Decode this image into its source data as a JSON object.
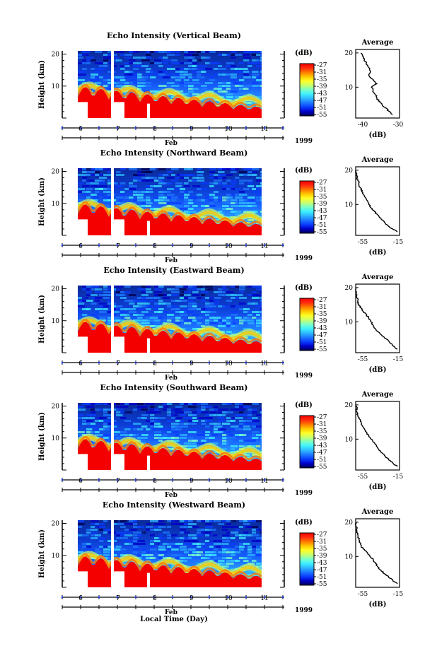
{
  "colors": {
    "colorscale": [
      "#00004e",
      "#0000c8",
      "#0a3cff",
      "#1e78ff",
      "#2db9ff",
      "#3ff0ff",
      "#7affc8",
      "#c8ff6e",
      "#ffff28",
      "#ffc800",
      "#ff7800",
      "#ff2a10",
      "#f50000"
    ]
  },
  "common": {
    "x_tick_labels": [
      "6",
      "7",
      "8",
      "9",
      "10",
      "11"
    ],
    "x_month_label": "Feb",
    "x_year_label": "1999",
    "xlabel": "Local Time (Day)",
    "ylabel": "Height (km)",
    "y_tick_labels": [
      "20",
      "10"
    ],
    "colorbar_unit": "(dB)",
    "colorbar_ticks": [
      "-27",
      "-31",
      "-35",
      "-39",
      "-43",
      "-47",
      "-51",
      "-55"
    ],
    "avg_title": "Average",
    "avg_xlabel": "(dB)"
  },
  "chart_data": [
    {
      "type": "heatmap",
      "title": "Echo Intensity (Vertical Beam)",
      "xlabel": "Local Time (Day)",
      "ylabel": "Height (km)",
      "x_ticks": [
        6,
        7,
        8,
        9,
        10,
        11
      ],
      "y_ticks": [
        10,
        20
      ],
      "colorbar": {
        "unit": "(dB)",
        "ticks": [
          -27,
          -31,
          -35,
          -39,
          -43,
          -47,
          -51,
          -55
        ]
      },
      "average_profile": {
        "title": "Average",
        "xlabel": "(dB)",
        "xlim": [
          -48,
          -23
        ],
        "x_tick_labels": [
          "-40",
          "-30"
        ],
        "ylim": [
          1,
          21
        ],
        "height_km": [
          20,
          19,
          18,
          17,
          16,
          15,
          14,
          13,
          12,
          11,
          10,
          9,
          8,
          7,
          6,
          5,
          4,
          3,
          2
        ],
        "db": [
          -45,
          -44,
          -43,
          -42,
          -41,
          -40,
          -40,
          -40,
          -38,
          -36,
          -39,
          -38,
          -37,
          -36,
          -35,
          -33,
          -31,
          -29,
          -27
        ]
      }
    },
    {
      "type": "heatmap",
      "title": "Echo Intensity (Northward Beam)",
      "xlabel": "Local Time (Day)",
      "ylabel": "Height (km)",
      "x_ticks": [
        6,
        7,
        8,
        9,
        10,
        11
      ],
      "y_ticks": [
        10,
        20
      ],
      "colorbar": {
        "unit": "(dB)",
        "ticks": [
          -27,
          -31,
          -35,
          -39,
          -43,
          -47,
          -51,
          -55
        ]
      },
      "average_profile": {
        "title": "Average",
        "xlabel": "(dB)",
        "xlim": [
          -55,
          -15
        ],
        "x_tick_labels": [
          "-55",
          "-15"
        ],
        "ylim": [
          1,
          21
        ],
        "height_km": [
          20,
          19,
          18,
          17,
          16,
          15,
          14,
          13,
          12,
          11,
          10,
          9,
          8,
          7,
          6,
          5,
          4,
          3,
          2
        ],
        "db": [
          -55,
          -54,
          -54,
          -53,
          -52,
          -51,
          -49,
          -48,
          -46,
          -44,
          -43,
          -41,
          -38,
          -35,
          -32,
          -29,
          -26,
          -22,
          -17
        ]
      }
    },
    {
      "type": "heatmap",
      "title": "Echo Intensity (Eastward Beam)",
      "xlabel": "Local Time (Day)",
      "ylabel": "Height (km)",
      "x_ticks": [
        6,
        7,
        8,
        9,
        10,
        11
      ],
      "y_ticks": [
        10,
        20
      ],
      "colorbar": {
        "unit": "(dB)",
        "ticks": [
          -27,
          -31,
          -35,
          -39,
          -43,
          -47,
          -51,
          -55
        ]
      },
      "average_profile": {
        "title": "Average",
        "xlabel": "(dB)",
        "xlim": [
          -55,
          -15
        ],
        "x_tick_labels": [
          "-55",
          "-15"
        ],
        "ylim": [
          1,
          21
        ],
        "height_km": [
          20,
          19,
          18,
          17,
          16,
          15,
          14,
          13,
          12,
          11,
          10,
          9,
          8,
          7,
          6,
          5,
          4,
          3,
          2
        ],
        "db": [
          -55,
          -55,
          -54,
          -54,
          -53,
          -52,
          -50,
          -48,
          -45,
          -43,
          -41,
          -39,
          -37,
          -34,
          -31,
          -27,
          -24,
          -21,
          -17
        ]
      }
    },
    {
      "type": "heatmap",
      "title": "Echo Intensity (Southward Beam)",
      "xlabel": "Local Time (Day)",
      "ylabel": "Height (km)",
      "x_ticks": [
        6,
        7,
        8,
        9,
        10,
        11
      ],
      "y_ticks": [
        10,
        20
      ],
      "colorbar": {
        "unit": "(dB)",
        "ticks": [
          -27,
          -31,
          -35,
          -39,
          -43,
          -47,
          -51,
          -55
        ]
      },
      "average_profile": {
        "title": "Average",
        "xlabel": "(dB)",
        "xlim": [
          -55,
          -15
        ],
        "x_tick_labels": [
          "-55",
          "-15"
        ],
        "ylim": [
          1,
          21
        ],
        "height_km": [
          20,
          19,
          18,
          17,
          16,
          15,
          14,
          13,
          12,
          11,
          10,
          9,
          8,
          7,
          6,
          5,
          4,
          3,
          2
        ],
        "db": [
          -55,
          -54,
          -54,
          -53,
          -52,
          -50,
          -49,
          -47,
          -45,
          -43,
          -41,
          -38,
          -36,
          -34,
          -31,
          -28,
          -25,
          -21,
          -17
        ]
      }
    },
    {
      "type": "heatmap",
      "title": "Echo Intensity (Westward Beam)",
      "xlabel": "Local Time (Day)",
      "ylabel": "Height (km)",
      "x_ticks": [
        6,
        7,
        8,
        9,
        10,
        11
      ],
      "y_ticks": [
        10,
        20
      ],
      "colorbar": {
        "unit": "(dB)",
        "ticks": [
          -27,
          -31,
          -35,
          -39,
          -43,
          -47,
          -51,
          -55
        ]
      },
      "average_profile": {
        "title": "Average",
        "xlabel": "(dB)",
        "xlim": [
          -55,
          -15
        ],
        "x_tick_labels": [
          "-55",
          "-15"
        ],
        "ylim": [
          1,
          21
        ],
        "height_km": [
          20,
          19,
          18,
          17,
          16,
          15,
          14,
          13,
          12,
          11,
          10,
          9,
          8,
          7,
          6,
          5,
          4,
          3,
          2
        ],
        "db": [
          -55,
          -55,
          -54,
          -54,
          -53,
          -52,
          -51,
          -50,
          -47,
          -44,
          -42,
          -39,
          -37,
          -35,
          -32,
          -29,
          -25,
          -21,
          -17
        ]
      }
    }
  ]
}
